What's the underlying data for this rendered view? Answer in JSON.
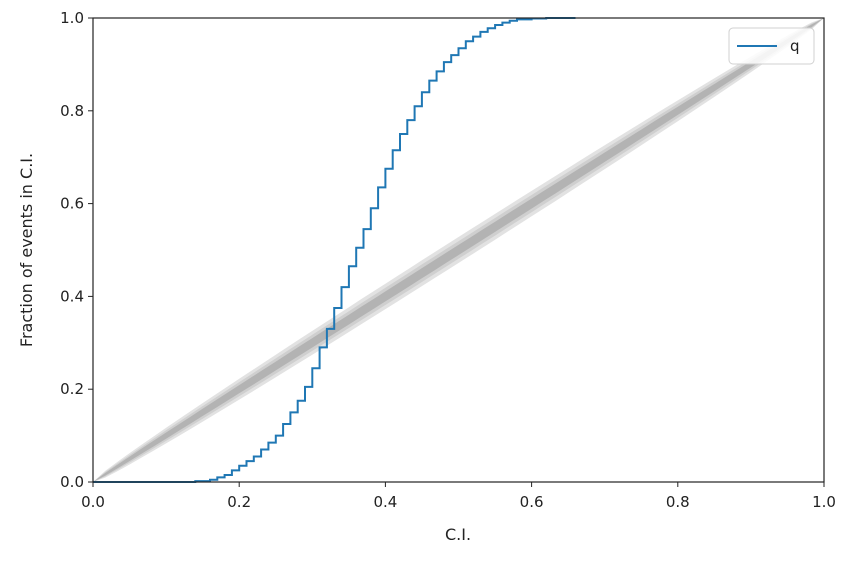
{
  "chart_data": {
    "type": "line",
    "title": "",
    "xlabel": "C.I.",
    "ylabel": "Fraction of events in C.I.",
    "xlim": [
      0.0,
      1.0
    ],
    "ylim": [
      0.0,
      1.0
    ],
    "x_ticks": [
      "0.0",
      "0.2",
      "0.4",
      "0.6",
      "0.8",
      "1.0"
    ],
    "y_ticks": [
      "0.0",
      "0.2",
      "0.4",
      "0.6",
      "0.8",
      "1.0"
    ],
    "grid": false,
    "legend_position": "top-right",
    "colors": {
      "series": "#1f77b4",
      "band_outer": "#e2e2e2",
      "band_mid": "#cfcfcf",
      "band_inner": "#b3b3b3"
    },
    "confidence_bands": [
      {
        "level": "outer",
        "halfwidth_mid": 0.028
      },
      {
        "level": "mid",
        "halfwidth_mid": 0.019
      },
      {
        "level": "inner",
        "halfwidth_mid": 0.011
      }
    ],
    "series": [
      {
        "name": "q",
        "step": true,
        "x": [
          0.0,
          0.1,
          0.14,
          0.16,
          0.17,
          0.18,
          0.19,
          0.2,
          0.21,
          0.22,
          0.23,
          0.24,
          0.25,
          0.26,
          0.27,
          0.28,
          0.29,
          0.3,
          0.31,
          0.32,
          0.33,
          0.34,
          0.35,
          0.36,
          0.37,
          0.38,
          0.39,
          0.4,
          0.41,
          0.42,
          0.43,
          0.44,
          0.45,
          0.46,
          0.47,
          0.48,
          0.49,
          0.5,
          0.51,
          0.52,
          0.53,
          0.54,
          0.55,
          0.56,
          0.57,
          0.58,
          0.6,
          0.62,
          0.66
        ],
        "y": [
          0.0,
          0.0,
          0.002,
          0.005,
          0.01,
          0.015,
          0.025,
          0.035,
          0.045,
          0.055,
          0.07,
          0.085,
          0.1,
          0.125,
          0.15,
          0.175,
          0.205,
          0.245,
          0.29,
          0.33,
          0.375,
          0.42,
          0.465,
          0.505,
          0.545,
          0.59,
          0.635,
          0.675,
          0.715,
          0.75,
          0.78,
          0.81,
          0.84,
          0.865,
          0.885,
          0.905,
          0.92,
          0.935,
          0.95,
          0.96,
          0.97,
          0.978,
          0.985,
          0.99,
          0.994,
          0.997,
          0.999,
          1.0,
          1.0
        ]
      }
    ]
  }
}
